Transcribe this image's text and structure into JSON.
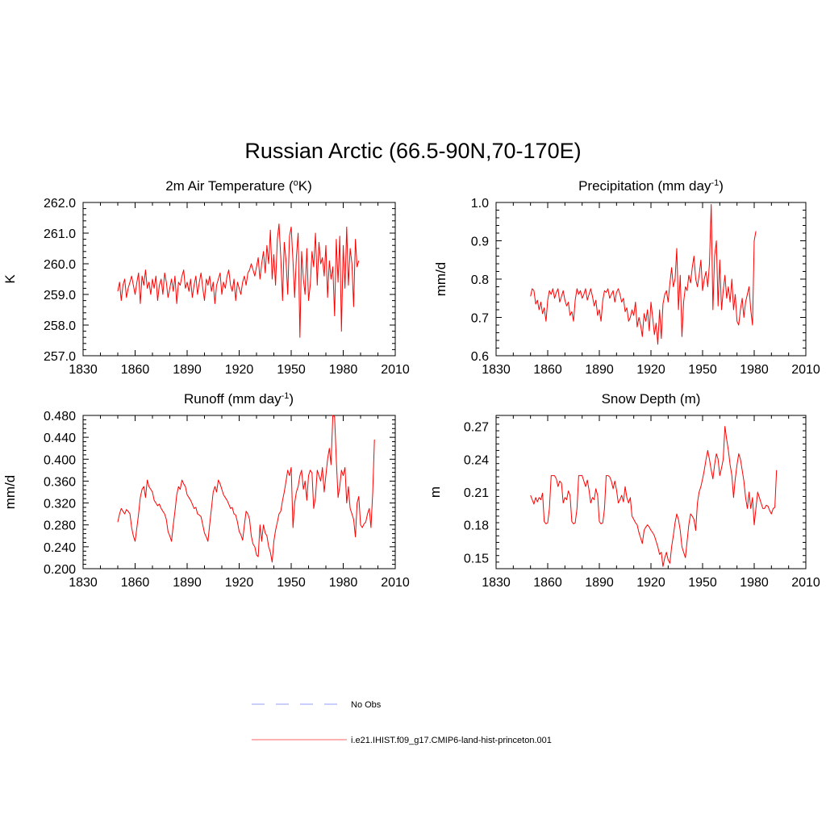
{
  "figure": {
    "title": "Russian Arctic (66.5-90N,70-170E)"
  },
  "legend": {
    "entries": [
      {
        "label": "No Obs",
        "color": "#aab0ff",
        "style": "dashed"
      },
      {
        "label": "i.e21.IHIST.f09_g17.CMIP6-land-hist-princeton.001",
        "color": "#ff8080",
        "style": "solid"
      }
    ]
  },
  "chart_data": [
    {
      "type": "line",
      "title": "2m Air Temperature (oK)",
      "title_parts": {
        "main": "2m Air Temperature (",
        "sup": "o",
        "tail": "K)"
      },
      "xlabel": "",
      "ylabel": "K",
      "xlim": [
        1830,
        2010
      ],
      "ylim": [
        257.0,
        262.0
      ],
      "x_ticks": [
        "1830",
        "1860",
        "1890",
        "1920",
        "1950",
        "1980",
        "2010"
      ],
      "y_ticks": [
        "257.0",
        "258.0",
        "259.0",
        "260.0",
        "261.0",
        "262.0"
      ],
      "y_tick_values": [
        257.0,
        258.0,
        259.0,
        260.0,
        261.0,
        262.0
      ],
      "x_start": 1850,
      "series": [
        {
          "color": "#ff0000",
          "values": [
            259.1,
            259.4,
            258.8,
            259.3,
            259.5,
            258.9,
            259.2,
            259.4,
            259.6,
            259.3,
            259.0,
            259.4,
            259.7,
            258.7,
            259.6,
            259.3,
            259.8,
            259.2,
            259.4,
            259.0,
            259.5,
            259.2,
            259.6,
            258.8,
            259.3,
            259.5,
            259.0,
            259.7,
            259.4,
            258.9,
            259.2,
            259.5,
            259.1,
            259.6,
            258.7,
            259.4,
            259.3,
            259.6,
            259.8,
            259.2,
            259.4,
            259.1,
            259.5,
            258.9,
            259.3,
            259.6,
            259.0,
            259.4,
            259.7,
            259.2,
            258.8,
            259.5,
            259.3,
            259.6,
            259.1,
            259.4,
            258.7,
            259.3,
            259.5,
            259.7,
            259.0,
            259.4,
            259.2,
            259.6,
            259.8,
            259.3,
            259.1,
            259.5,
            258.8,
            259.4,
            259.2,
            259.0,
            259.4,
            259.6,
            259.3,
            259.7,
            259.8,
            260.0,
            259.8,
            259.6,
            259.9,
            260.2,
            259.5,
            260.0,
            260.4,
            259.7,
            260.6,
            260.0,
            261.1,
            259.5,
            260.3,
            259.3,
            260.8,
            261.3,
            260.2,
            258.8,
            260.7,
            260.1,
            259.0,
            260.9,
            261.2,
            260.1,
            258.9,
            260.2,
            261.0,
            257.6,
            260.4,
            259.5,
            259.0,
            260.5,
            258.8,
            259.3,
            260.4,
            259.9,
            261.0,
            259.3,
            260.7,
            260.0,
            260.2,
            259.6,
            260.6,
            258.9,
            260.1,
            259.5,
            259.9,
            258.3,
            260.8,
            259.4,
            260.9,
            257.8,
            260.6,
            259.2,
            261.2,
            259.3,
            260.5,
            260.0,
            258.6,
            260.8,
            259.9,
            260.1
          ]
        }
      ]
    },
    {
      "type": "line",
      "title": "Precipitation (mm day-1)",
      "title_parts": {
        "main": "Precipitation (mm day",
        "sup": "-1",
        "tail": ")"
      },
      "xlabel": "",
      "ylabel": "mm/d",
      "xlim": [
        1830,
        2010
      ],
      "ylim": [
        0.6,
        1.0
      ],
      "x_ticks": [
        "1830",
        "1860",
        "1890",
        "1920",
        "1950",
        "1980",
        "2010"
      ],
      "y_ticks": [
        "0.6",
        "0.7",
        "0.8",
        "0.9",
        "1.0"
      ],
      "y_tick_values": [
        0.6,
        0.7,
        0.8,
        0.9,
        1.0
      ],
      "x_start": 1850,
      "series": [
        {
          "color": "#ff0000",
          "values": [
            0.755,
            0.775,
            0.77,
            0.735,
            0.745,
            0.72,
            0.74,
            0.71,
            0.725,
            0.69,
            0.745,
            0.77,
            0.76,
            0.775,
            0.75,
            0.765,
            0.775,
            0.74,
            0.755,
            0.77,
            0.745,
            0.73,
            0.74,
            0.705,
            0.715,
            0.69,
            0.745,
            0.775,
            0.76,
            0.77,
            0.75,
            0.76,
            0.775,
            0.745,
            0.76,
            0.775,
            0.755,
            0.73,
            0.745,
            0.705,
            0.72,
            0.69,
            0.745,
            0.77,
            0.765,
            0.775,
            0.75,
            0.76,
            0.77,
            0.74,
            0.765,
            0.775,
            0.76,
            0.74,
            0.75,
            0.715,
            0.725,
            0.69,
            0.7,
            0.72,
            0.705,
            0.74,
            0.675,
            0.7,
            0.68,
            0.65,
            0.71,
            0.69,
            0.72,
            0.665,
            0.74,
            0.7,
            0.655,
            0.685,
            0.63,
            0.72,
            0.645,
            0.735,
            0.76,
            0.77,
            0.74,
            0.79,
            0.83,
            0.78,
            0.8,
            0.88,
            0.72,
            0.81,
            0.65,
            0.74,
            0.78,
            0.77,
            0.81,
            0.79,
            0.83,
            0.86,
            0.8,
            0.78,
            0.81,
            0.85,
            0.77,
            0.8,
            0.82,
            0.78,
            0.84,
            0.995,
            0.72,
            0.86,
            0.9,
            0.73,
            0.85,
            0.72,
            0.77,
            0.81,
            0.75,
            0.78,
            0.74,
            0.8,
            0.72,
            0.76,
            0.69,
            0.68,
            0.72,
            0.75,
            0.7,
            0.74,
            0.76,
            0.78,
            0.72,
            0.68,
            0.9,
            0.925
          ]
        }
      ]
    },
    {
      "type": "line",
      "title": "Runoff (mm day-1)",
      "title_parts": {
        "main": "Runoff (mm day",
        "sup": "-1",
        "tail": ")"
      },
      "xlabel": "",
      "ylabel": "mm/d",
      "xlim": [
        1830,
        2010
      ],
      "ylim": [
        0.2,
        0.48
      ],
      "x_ticks": [
        "1830",
        "1860",
        "1890",
        "1920",
        "1950",
        "1980",
        "2010"
      ],
      "y_ticks": [
        "0.200",
        "0.240",
        "0.280",
        "0.320",
        "0.360",
        "0.400",
        "0.440",
        "0.480"
      ],
      "y_tick_values": [
        0.2,
        0.24,
        0.28,
        0.32,
        0.36,
        0.4,
        0.44,
        0.48
      ],
      "x_start": 1850,
      "series": [
        {
          "color": "#ff0000",
          "values": [
            0.285,
            0.3,
            0.31,
            0.305,
            0.3,
            0.308,
            0.305,
            0.3,
            0.275,
            0.26,
            0.25,
            0.275,
            0.3,
            0.33,
            0.345,
            0.35,
            0.33,
            0.362,
            0.35,
            0.345,
            0.34,
            0.325,
            0.32,
            0.315,
            0.318,
            0.31,
            0.305,
            0.3,
            0.29,
            0.268,
            0.26,
            0.25,
            0.28,
            0.305,
            0.335,
            0.35,
            0.345,
            0.362,
            0.355,
            0.35,
            0.335,
            0.33,
            0.325,
            0.318,
            0.31,
            0.312,
            0.3,
            0.298,
            0.295,
            0.28,
            0.265,
            0.258,
            0.25,
            0.28,
            0.31,
            0.34,
            0.35,
            0.34,
            0.362,
            0.355,
            0.345,
            0.335,
            0.33,
            0.325,
            0.318,
            0.31,
            0.312,
            0.3,
            0.298,
            0.285,
            0.268,
            0.262,
            0.252,
            0.28,
            0.305,
            0.3,
            0.29,
            0.26,
            0.245,
            0.24,
            0.225,
            0.222,
            0.28,
            0.25,
            0.28,
            0.265,
            0.26,
            0.24,
            0.23,
            0.212,
            0.25,
            0.27,
            0.285,
            0.3,
            0.305,
            0.325,
            0.34,
            0.36,
            0.38,
            0.37,
            0.385,
            0.275,
            0.32,
            0.34,
            0.35,
            0.37,
            0.38,
            0.345,
            0.36,
            0.325,
            0.37,
            0.38,
            0.375,
            0.31,
            0.33,
            0.38,
            0.37,
            0.36,
            0.385,
            0.34,
            0.37,
            0.4,
            0.42,
            0.39,
            0.48,
            0.478,
            0.4,
            0.33,
            0.35,
            0.38,
            0.37,
            0.385,
            0.32,
            0.35,
            0.31,
            0.3,
            0.29,
            0.258,
            0.32,
            0.332,
            0.28,
            0.275,
            0.282,
            0.285,
            0.3,
            0.31,
            0.275,
            0.34,
            0.436
          ]
        }
      ]
    },
    {
      "type": "line",
      "title": "Snow Depth (m)",
      "xlabel": "",
      "ylabel": "m",
      "xlim": [
        1830,
        2010
      ],
      "ylim": [
        0.14,
        0.28
      ],
      "x_ticks": [
        "1830",
        "1860",
        "1890",
        "1920",
        "1950",
        "1980",
        "2010"
      ],
      "y_ticks": [
        "0.15",
        "0.18",
        "0.21",
        "0.24",
        "0.27"
      ],
      "y_tick_values": [
        0.15,
        0.18,
        0.21,
        0.24,
        0.27
      ],
      "x_start": 1850,
      "series": [
        {
          "color": "#ff0000",
          "values": [
            0.207,
            0.203,
            0.199,
            0.205,
            0.201,
            0.205,
            0.203,
            0.209,
            0.183,
            0.181,
            0.182,
            0.195,
            0.225,
            0.225,
            0.225,
            0.222,
            0.215,
            0.22,
            0.218,
            0.2,
            0.205,
            0.203,
            0.211,
            0.207,
            0.183,
            0.181,
            0.182,
            0.195,
            0.225,
            0.225,
            0.225,
            0.22,
            0.215,
            0.221,
            0.212,
            0.2,
            0.205,
            0.203,
            0.213,
            0.207,
            0.183,
            0.181,
            0.182,
            0.195,
            0.225,
            0.225,
            0.224,
            0.22,
            0.213,
            0.22,
            0.212,
            0.2,
            0.203,
            0.207,
            0.201,
            0.215,
            0.205,
            0.2,
            0.205,
            0.188,
            0.185,
            0.182,
            0.18,
            0.173,
            0.168,
            0.163,
            0.175,
            0.178,
            0.18,
            0.178,
            0.175,
            0.173,
            0.17,
            0.165,
            0.16,
            0.153,
            0.155,
            0.142,
            0.15,
            0.155,
            0.148,
            0.145,
            0.16,
            0.17,
            0.182,
            0.19,
            0.185,
            0.175,
            0.16,
            0.155,
            0.15,
            0.165,
            0.18,
            0.19,
            0.188,
            0.185,
            0.175,
            0.2,
            0.21,
            0.215,
            0.222,
            0.23,
            0.24,
            0.248,
            0.24,
            0.23,
            0.222,
            0.235,
            0.245,
            0.24,
            0.225,
            0.232,
            0.24,
            0.27,
            0.258,
            0.248,
            0.235,
            0.225,
            0.205,
            0.222,
            0.235,
            0.245,
            0.24,
            0.23,
            0.22,
            0.205,
            0.195,
            0.21,
            0.195,
            0.205,
            0.18,
            0.195,
            0.21,
            0.205,
            0.2,
            0.195,
            0.195,
            0.198,
            0.197,
            0.193,
            0.19,
            0.195,
            0.196,
            0.23
          ]
        }
      ]
    }
  ]
}
